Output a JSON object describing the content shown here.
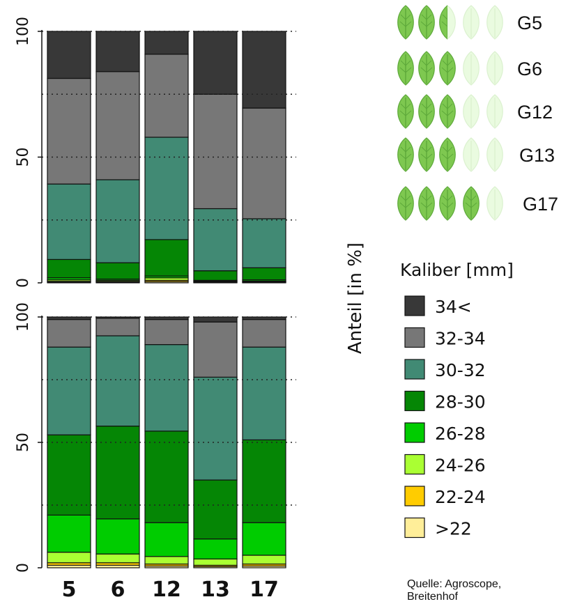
{
  "chart_data": [
    {
      "type": "bar",
      "stacked": true,
      "categories": [
        "5",
        "6",
        "12",
        "13",
        "17"
      ],
      "ylim": [
        0,
        100
      ],
      "yticks": [
        "0",
        "50",
        "100"
      ],
      "grid": "horizontal dotted",
      "series": [
        {
          "name": ">22",
          "values": [
            0.3,
            0.3,
            0.5,
            0.2,
            0.2
          ]
        },
        {
          "name": "22-24",
          "values": [
            0.3,
            0.3,
            0.5,
            0.2,
            0.2
          ]
        },
        {
          "name": "24-26",
          "values": [
            0.6,
            0.4,
            1.0,
            0.3,
            0.3
          ]
        },
        {
          "name": "26-28",
          "values": [
            0.8,
            0.5,
            0.7,
            0.3,
            0.5
          ]
        },
        {
          "name": "28-30",
          "values": [
            7.3,
            6.5,
            14.5,
            3.8,
            4.8
          ]
        },
        {
          "name": "30-32",
          "values": [
            30.0,
            33.0,
            40.7,
            24.7,
            19.5
          ]
        },
        {
          "name": "32-34",
          "values": [
            42.0,
            43.0,
            33.0,
            45.5,
            44.0
          ]
        },
        {
          "name": "34<",
          "values": [
            18.7,
            16.0,
            9.1,
            25.0,
            30.5
          ]
        }
      ]
    },
    {
      "type": "bar",
      "stacked": true,
      "categories": [
        "5",
        "6",
        "12",
        "13",
        "17"
      ],
      "ylim": [
        0,
        100
      ],
      "yticks": [
        "0",
        "50",
        "100"
      ],
      "grid": "horizontal dotted",
      "series": [
        {
          "name": ">22",
          "values": [
            1.0,
            1.0,
            0.7,
            0.5,
            0.7
          ]
        },
        {
          "name": "22-24",
          "values": [
            1.0,
            1.0,
            0.8,
            0.5,
            0.8
          ]
        },
        {
          "name": "24-26",
          "values": [
            4.2,
            3.5,
            3.0,
            2.5,
            3.5
          ]
        },
        {
          "name": "26-28",
          "values": [
            14.8,
            14.0,
            13.5,
            8.0,
            13.0
          ]
        },
        {
          "name": "28-30",
          "values": [
            32.0,
            37.0,
            36.5,
            23.5,
            33.0
          ]
        },
        {
          "name": "30-32",
          "values": [
            35.0,
            36.0,
            34.5,
            41.0,
            37.0
          ]
        },
        {
          "name": "32-34",
          "values": [
            11.0,
            7.0,
            10.0,
            22.0,
            11.0
          ]
        },
        {
          "name": "34<",
          "values": [
            1.0,
            0.5,
            1.0,
            2.0,
            1.0
          ]
        }
      ]
    }
  ],
  "ylabel": "Anteil [in %]",
  "groups": [
    {
      "label": "G5",
      "leaves_full": 2,
      "leaves_half": 1
    },
    {
      "label": "G6",
      "leaves_full": 3,
      "leaves_half": 0
    },
    {
      "label": "G12",
      "leaves_full": 3,
      "leaves_half": 0
    },
    {
      "label": "G13",
      "leaves_full": 3,
      "leaves_half": 0
    },
    {
      "label": "G17",
      "leaves_full": 4,
      "leaves_half": 0
    }
  ],
  "legend": {
    "title": "Kaliber [mm]",
    "items": [
      {
        "label": "34<",
        "color": "#383838"
      },
      {
        "label": "32-34",
        "color": "#777777"
      },
      {
        "label": "30-32",
        "color": "#418a74"
      },
      {
        "label": "28-30",
        "color": "#058605"
      },
      {
        "label": "26-28",
        "color": "#00cc00"
      },
      {
        "label": "24-26",
        "color": "#aaff33"
      },
      {
        "label": "22-24",
        "color": "#ffcc00"
      },
      {
        "label": ">22",
        "color": "#ffee99"
      }
    ]
  },
  "source": [
    "Quelle: Agroscope,",
    "Breitenhof"
  ]
}
